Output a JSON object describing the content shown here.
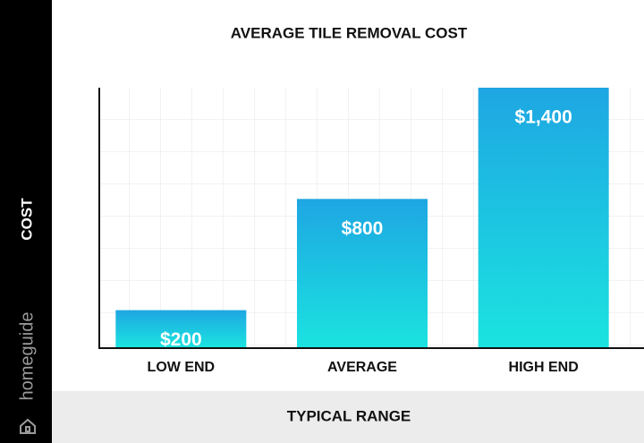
{
  "brand": "homeguide",
  "chart_data": {
    "type": "bar",
    "title": "AVERAGE TILE REMOVAL COST",
    "y_label": "COST",
    "x_label": "TYPICAL RANGE",
    "categories": [
      "LOW END",
      "AVERAGE",
      "HIGH END"
    ],
    "values": [
      200,
      800,
      1400
    ],
    "value_labels": [
      "$200",
      "$800",
      "$1,400"
    ],
    "ylim": [
      0,
      1400
    ],
    "grid": true
  }
}
